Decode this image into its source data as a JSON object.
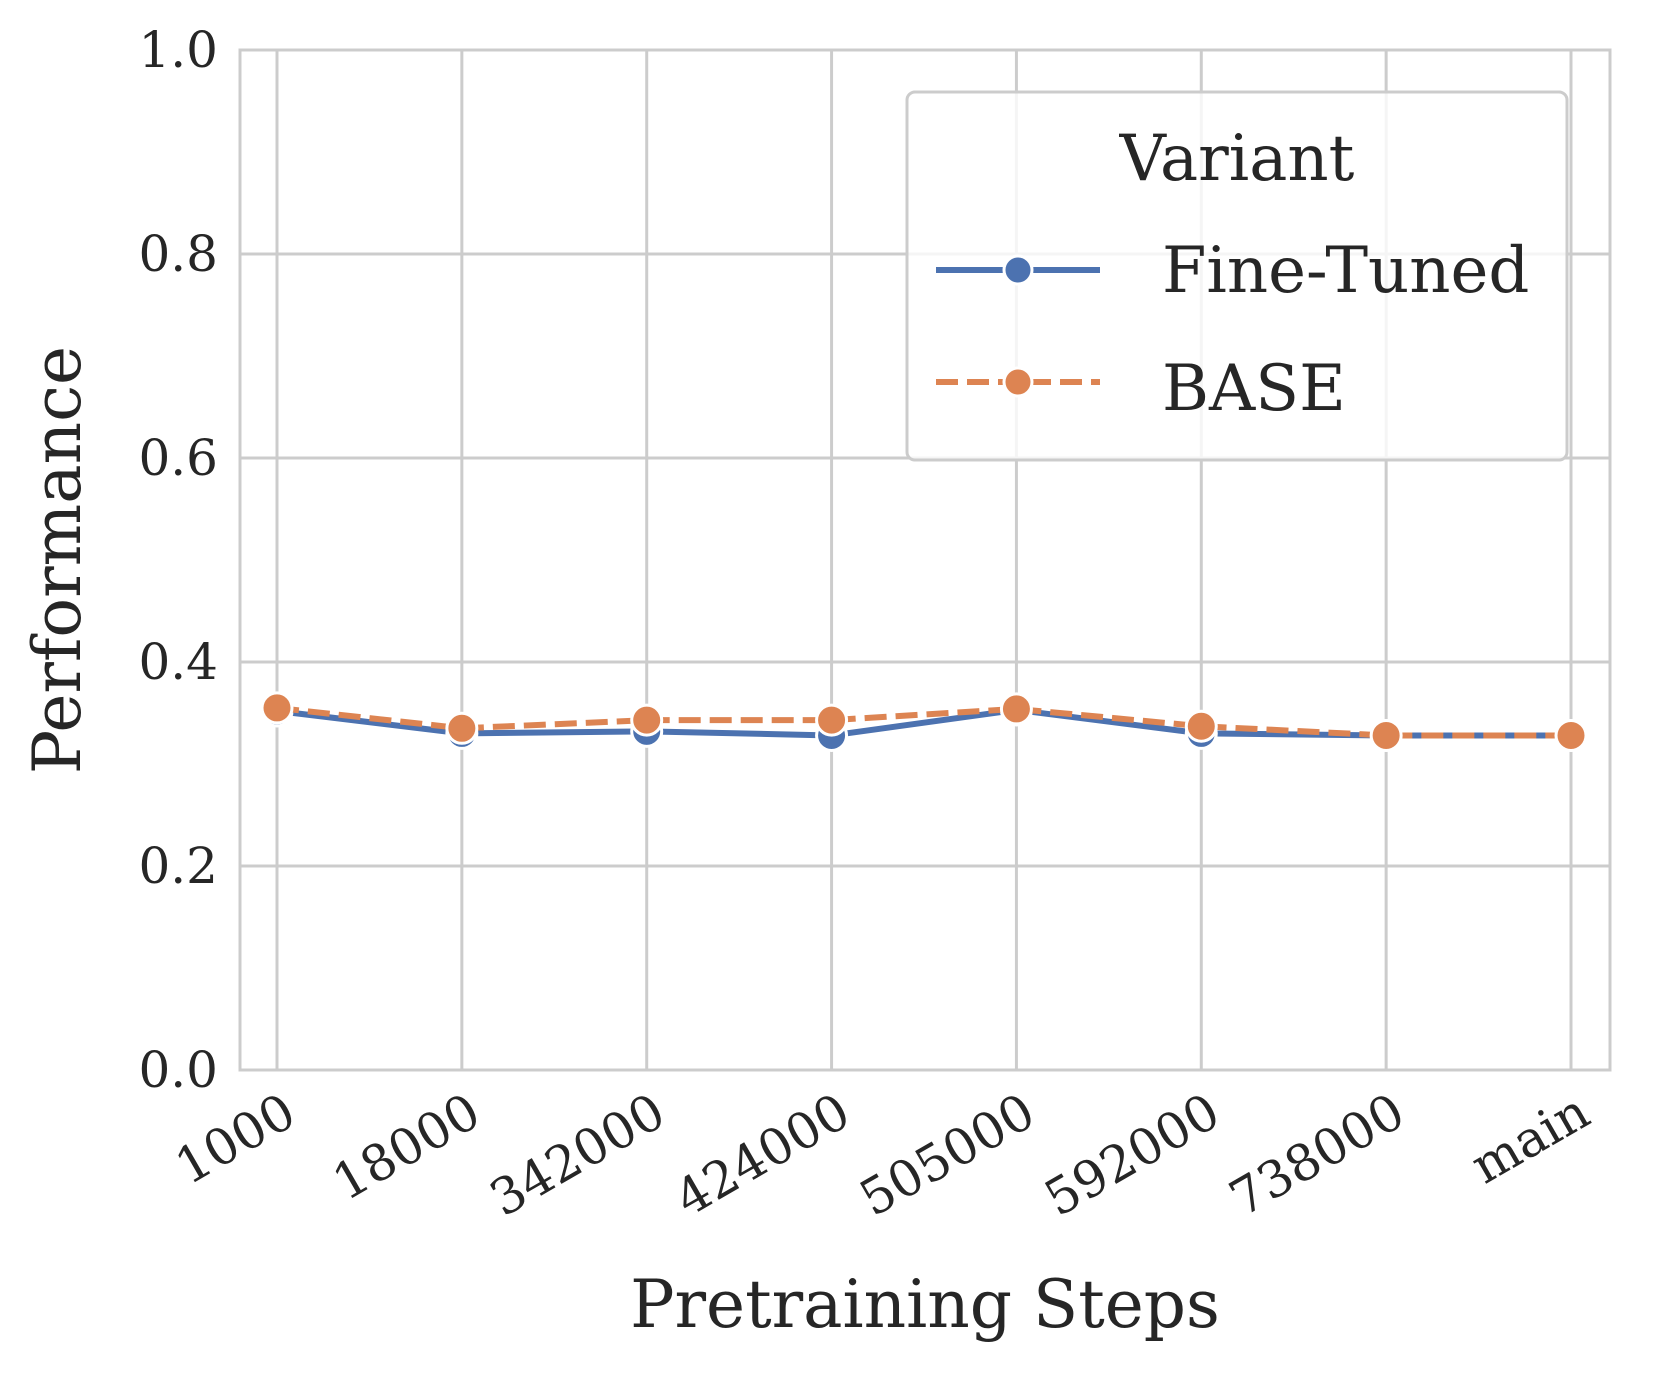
{
  "chart_data": {
    "type": "line",
    "title": "",
    "xlabel": "Pretraining Steps",
    "ylabel": "Performance",
    "categories": [
      "1000",
      "18000",
      "342000",
      "424000",
      "505000",
      "592000",
      "738000",
      "main"
    ],
    "ylim": [
      0.0,
      1.0
    ],
    "yticks": [
      "0.0",
      "0.2",
      "0.4",
      "0.6",
      "0.8",
      "1.0"
    ],
    "grid": true,
    "legend": {
      "title": "Variant",
      "position": "top-right"
    },
    "series": [
      {
        "name": "Fine-Tuned",
        "values": [
          0.352,
          0.33,
          0.332,
          0.328,
          0.353,
          0.33,
          0.328,
          0.328
        ],
        "color": "#4c72b0",
        "style": "solid",
        "marker": "circle"
      },
      {
        "name": "BASE",
        "values": [
          0.355,
          0.335,
          0.343,
          0.343,
          0.354,
          0.337,
          0.328,
          0.328
        ],
        "color": "#dd8452",
        "style": "dashed",
        "marker": "circle"
      }
    ]
  },
  "colors": {
    "grid": "#cccccc",
    "frame": "#cccccc",
    "text": "#262626",
    "legend_edge": "#cccccc"
  }
}
